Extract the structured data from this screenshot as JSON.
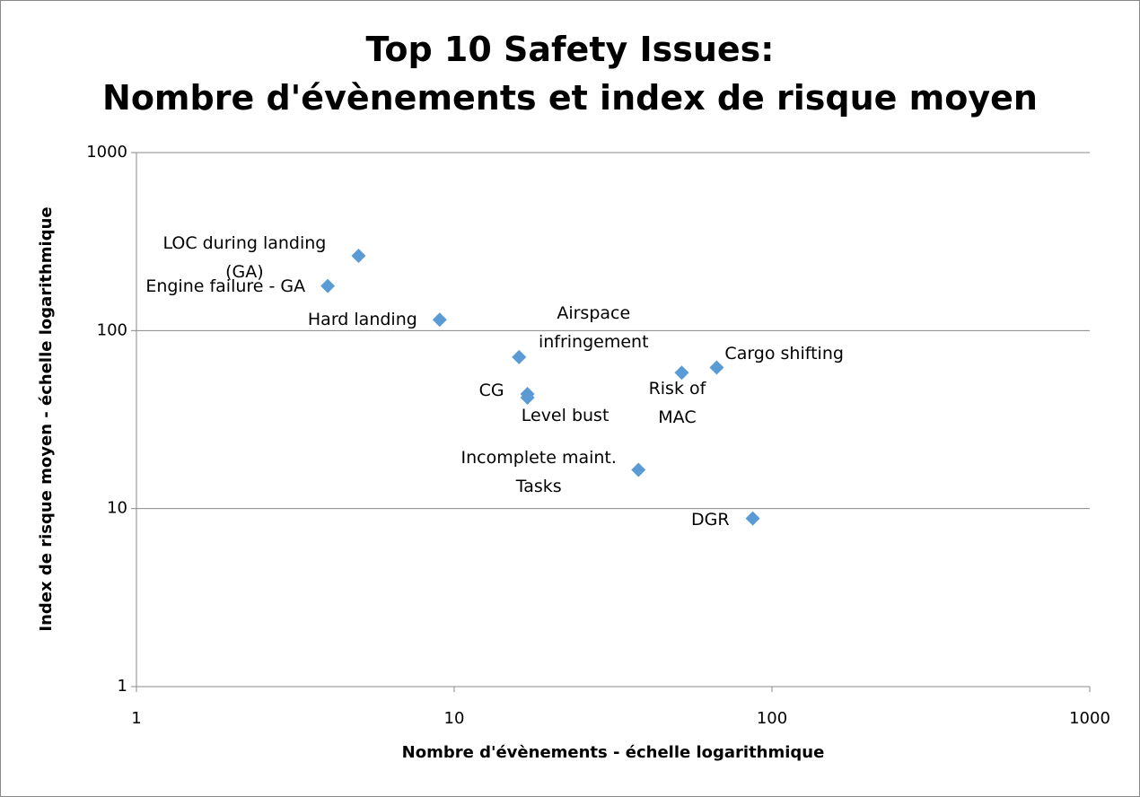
{
  "chart_data": {
    "type": "scatter",
    "title": "Top 10 Safety Issues:\nNombre d'évènements et index de risque moyen",
    "x_label": "Nombre d'évènements - échelle logarithmique",
    "y_label": "Index de risque moyen -  échelle logarithmique",
    "labels": [
      "LOC during landing (GA)",
      "Engine failure - GA",
      "Hard landing",
      "Airspace infringement",
      "CG",
      "Level bust",
      "Risk of MAC",
      "Cargo shifting",
      "Incomplete maint. Tasks",
      "DGR"
    ],
    "x": [
      5,
      4,
      9,
      16,
      17,
      17,
      52,
      67,
      38,
      87
    ],
    "y": [
      263,
      178,
      115,
      71,
      44,
      42,
      58,
      62,
      16.5,
      8.8
    ],
    "color": "#5b9bd5",
    "xlim": [
      1,
      1000
    ],
    "xticks": [
      1,
      10,
      100,
      1000
    ],
    "xscale": "log",
    "ylim": [
      1,
      1000
    ],
    "yticks": [
      1,
      10,
      100,
      1000
    ],
    "yscale": "log",
    "grid": true
  }
}
